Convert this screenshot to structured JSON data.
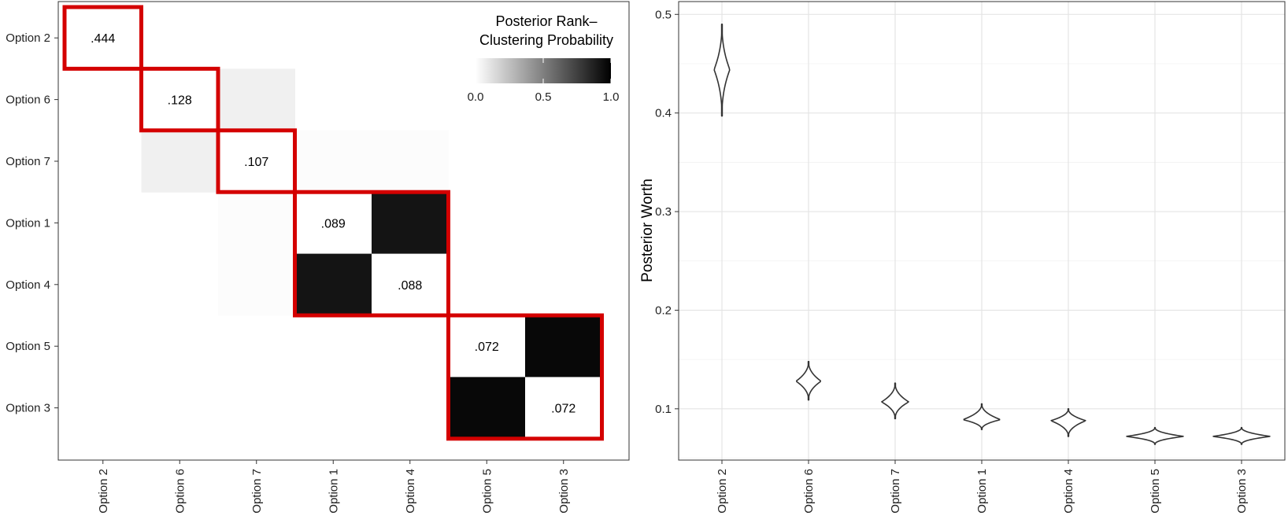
{
  "chart_data": [
    {
      "type": "heatmap",
      "title": "",
      "xlabel": "",
      "ylabel": "",
      "categories": [
        "Option 2",
        "Option 6",
        "Option 7",
        "Option 1",
        "Option 4",
        "Option 5",
        "Option 3"
      ],
      "diagonal_labels": [
        ".444",
        ".128",
        ".107",
        ".089",
        ".088",
        ".072",
        ".072"
      ],
      "matrix": [
        [
          null,
          0,
          0,
          0,
          0,
          0,
          0
        ],
        [
          0,
          null,
          0.06,
          0,
          0,
          0,
          0
        ],
        [
          0,
          0.06,
          null,
          0.01,
          0.01,
          0,
          0
        ],
        [
          0,
          0,
          0.01,
          null,
          0.92,
          0,
          0
        ],
        [
          0,
          0,
          0.01,
          0.92,
          null,
          0,
          0
        ],
        [
          0,
          0,
          0,
          0,
          0,
          null,
          0.97
        ],
        [
          0,
          0,
          0,
          0,
          0,
          0.97,
          null
        ]
      ],
      "clusters": [
        [
          0,
          0
        ],
        [
          1,
          1
        ],
        [
          2,
          2
        ],
        [
          3,
          4
        ],
        [
          5,
          6
        ]
      ],
      "cluster_outline_color": "#d40000",
      "legend": {
        "title_line1": "Posterior Rank–",
        "title_line2": "Clustering Probability",
        "ticks": [
          "0.0",
          "0.5",
          "1.0"
        ],
        "range": [
          0,
          1
        ],
        "placement": "top-right"
      }
    },
    {
      "type": "violin",
      "title": "",
      "xlabel": "",
      "ylabel": "Posterior Worth",
      "categories": [
        "Option 2",
        "Option 6",
        "Option 7",
        "Option 1",
        "Option 4",
        "Option 5",
        "Option 3"
      ],
      "yticks": [
        "0.1",
        "0.2",
        "0.3",
        "0.4",
        "0.5"
      ],
      "ylim": [
        0.048,
        0.513
      ],
      "grid": true,
      "series": [
        {
          "category": "Option 2",
          "median": 0.444,
          "min": 0.397,
          "max": 0.49
        },
        {
          "category": "Option 6",
          "median": 0.128,
          "min": 0.109,
          "max": 0.148
        },
        {
          "category": "Option 7",
          "median": 0.107,
          "min": 0.09,
          "max": 0.126
        },
        {
          "category": "Option 1",
          "median": 0.089,
          "min": 0.079,
          "max": 0.105
        },
        {
          "category": "Option 4",
          "median": 0.088,
          "min": 0.072,
          "max": 0.1
        },
        {
          "category": "Option 5",
          "median": 0.072,
          "min": 0.064,
          "max": 0.081
        },
        {
          "category": "Option 3",
          "median": 0.072,
          "min": 0.064,
          "max": 0.081
        }
      ]
    }
  ]
}
